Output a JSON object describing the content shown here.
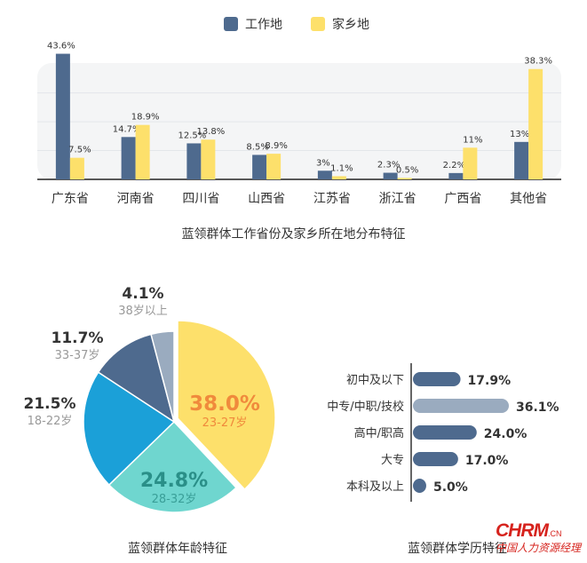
{
  "chart_data": [
    {
      "type": "bar",
      "title": "蓝领群体工作省份及家乡所在地分布特征",
      "categories": [
        "广东省",
        "河南省",
        "四川省",
        "山西省",
        "江苏省",
        "浙江省",
        "广西省",
        "其他省"
      ],
      "series": [
        {
          "name": "工作地",
          "color": "#4e6a8e",
          "values": [
            43.6,
            14.7,
            12.5,
            8.5,
            3,
            2.3,
            2.2,
            13
          ],
          "labels": [
            "43.6%",
            "14.7%",
            "12.5%",
            "8.5%",
            "3%",
            "2.3%",
            "2.2%",
            "13%"
          ]
        },
        {
          "name": "家乡地",
          "color": "#fde06b",
          "values": [
            7.5,
            18.9,
            13.8,
            8.9,
            1.1,
            0.5,
            11,
            38.3
          ],
          "labels": [
            "7.5%",
            "18.9%",
            "13.8%",
            "8.9%",
            "1.1%",
            "0.5%",
            "11%",
            "38.3%"
          ]
        }
      ],
      "ylim": [
        0,
        45
      ]
    },
    {
      "type": "pie",
      "title": "蓝领群体年龄特征",
      "slices": [
        {
          "label": "23-27岁",
          "value": 38.0,
          "display": "38.0%",
          "color": "#fde06b",
          "text_color": "#f08a3c",
          "sub_color": "#f08a3c"
        },
        {
          "label": "28-32岁",
          "value": 24.8,
          "display": "24.8%",
          "color": "#6fd6cf",
          "text_color": "#2a8f88",
          "sub_color": "#3a9f98"
        },
        {
          "label": "18-22岁",
          "value": 21.5,
          "display": "21.5%",
          "color": "#1ba0d8",
          "text_color": "#333333",
          "sub_color": "#999999"
        },
        {
          "label": "33-37岁",
          "value": 11.7,
          "display": "11.7%",
          "color": "#4e6a8e",
          "text_color": "#333333",
          "sub_color": "#999999"
        },
        {
          "label": "38岁以上",
          "value": 4.1,
          "display": "4.1%",
          "color": "#9aabbf",
          "text_color": "#333333",
          "sub_color": "#999999"
        }
      ]
    },
    {
      "type": "bar",
      "orientation": "horizontal",
      "title": "蓝领群体学历特征",
      "categories": [
        "初中及以下",
        "中专/中职/技校",
        "高中/职高",
        "大专",
        "本科及以上"
      ],
      "values": [
        17.9,
        36.1,
        24.0,
        17.0,
        5.0
      ],
      "labels": [
        "17.9%",
        "36.1%",
        "24.0%",
        "17.0%",
        "5.0%"
      ],
      "colors": [
        "#4e6a8e",
        "#9aabbf",
        "#4e6a8e",
        "#4e6a8e",
        "#4e6a8e"
      ],
      "xlim": [
        0,
        40
      ]
    }
  ],
  "logo": {
    "text": "CHRM",
    "suffix": ".CN",
    "tagline": "中国人力资源经理"
  }
}
